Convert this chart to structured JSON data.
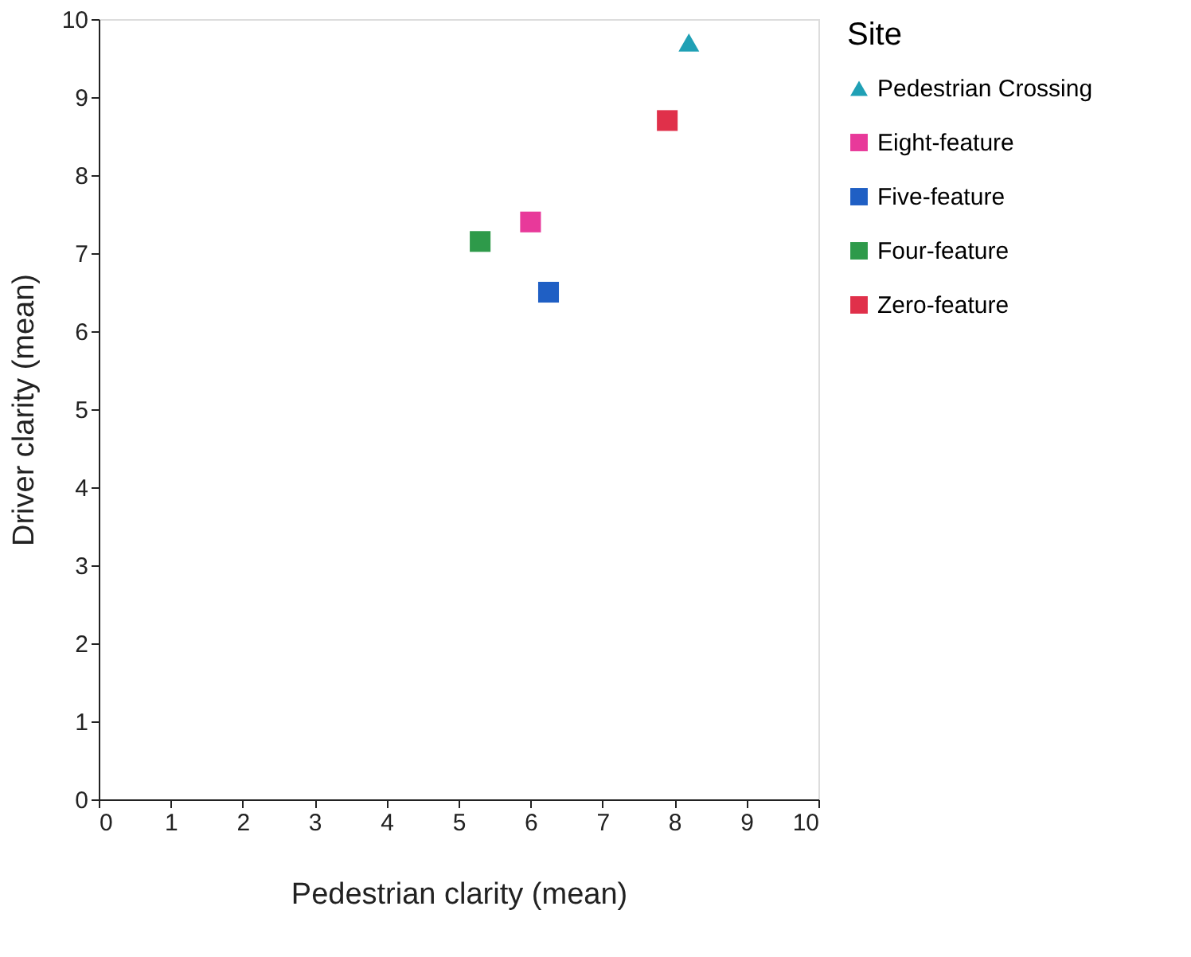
{
  "chart_data": {
    "type": "scatter",
    "xlabel": "Pedestrian clarity (mean)",
    "ylabel": "Driver clarity (mean)",
    "legend_title": "Site",
    "legend": "right",
    "grid": false,
    "xlim": [
      0,
      10
    ],
    "xticks": [
      0,
      1,
      2,
      3,
      4,
      5,
      6,
      7,
      8,
      9,
      10
    ],
    "ylim": [
      0,
      10
    ],
    "yticks": [
      0,
      1,
      2,
      3,
      4,
      5,
      6,
      7,
      8,
      9,
      10
    ],
    "series": [
      {
        "name": "Pedestrian Crossing",
        "color": "#1fa0b5",
        "marker": "triangle",
        "x": [
          8.2
        ],
        "values": [
          9.7
        ]
      },
      {
        "name": "Eight-feature",
        "color": "#e8399a",
        "marker": "square",
        "x": [
          6.0
        ],
        "values": [
          7.4
        ]
      },
      {
        "name": "Five-feature",
        "color": "#1f5fc4",
        "marker": "square",
        "x": [
          6.25
        ],
        "values": [
          6.5
        ]
      },
      {
        "name": "Four-feature",
        "color": "#2e9a4a",
        "marker": "square",
        "x": [
          5.3
        ],
        "values": [
          7.15
        ]
      },
      {
        "name": "Zero-feature",
        "color": "#e0304a",
        "marker": "square",
        "x": [
          7.9
        ],
        "values": [
          8.7
        ]
      }
    ]
  }
}
